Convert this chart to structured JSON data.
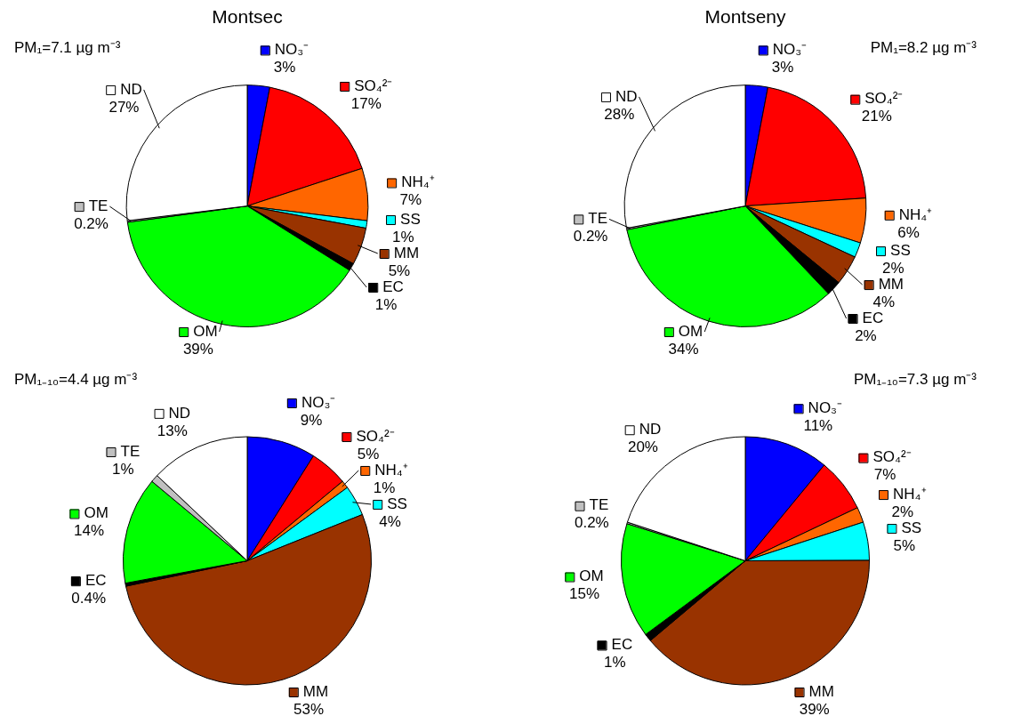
{
  "chart_data": [
    {
      "type": "pie",
      "legend": "right",
      "title": "Montsec",
      "annotations": [
        "PM₁=7.1 µg m⁻³"
      ],
      "categories": [
        "NO₃⁻",
        "SO₄²⁻",
        "NH₄⁺",
        "SS",
        "MM",
        "EC",
        "OM",
        "TE",
        "ND"
      ],
      "values": [
        3,
        17,
        7,
        1,
        5,
        1,
        39,
        0.2,
        27
      ],
      "value_labels": [
        "3%",
        "17%",
        "7%",
        "1%",
        "5%",
        "1%",
        "39%",
        "0.2%",
        "27%"
      ],
      "colors": [
        "#0000ff",
        "#ff0000",
        "#ff6600",
        "#00ffff",
        "#993300",
        "#000000",
        "#00ff00",
        "#c0c0c0",
        "#ffffff"
      ]
    },
    {
      "type": "pie",
      "legend": "right",
      "title": "Montseny",
      "annotations": [
        "PM₁=8.2 µg m⁻³"
      ],
      "categories": [
        "NO₃⁻",
        "SO₄²⁻",
        "NH₄⁺",
        "SS",
        "MM",
        "EC",
        "OM",
        "TE",
        "ND"
      ],
      "values": [
        3,
        21,
        6,
        2,
        4,
        2,
        34,
        0.2,
        28
      ],
      "value_labels": [
        "3%",
        "21%",
        "6%",
        "2%",
        "4%",
        "2%",
        "34%",
        "0.2%",
        "28%"
      ],
      "colors": [
        "#0000ff",
        "#ff0000",
        "#ff6600",
        "#00ffff",
        "#993300",
        "#000000",
        "#00ff00",
        "#c0c0c0",
        "#ffffff"
      ]
    },
    {
      "type": "pie",
      "legend": "right",
      "annotations": [
        "PM₁₋₁₀=4.4 µg m⁻³"
      ],
      "categories": [
        "NO₃⁻",
        "SO₄²⁻",
        "NH₄⁺",
        "SS",
        "MM",
        "EC",
        "OM",
        "TE",
        "ND"
      ],
      "values": [
        9,
        5,
        1,
        4,
        53,
        0.4,
        14,
        1,
        13
      ],
      "value_labels": [
        "9%",
        "5%",
        "1%",
        "4%",
        "53%",
        "0.4%",
        "14%",
        "1%",
        "13%"
      ],
      "colors": [
        "#0000ff",
        "#ff0000",
        "#ff6600",
        "#00ffff",
        "#993300",
        "#000000",
        "#00ff00",
        "#c0c0c0",
        "#ffffff"
      ]
    },
    {
      "type": "pie",
      "legend": "right",
      "annotations": [
        "PM₁₋₁₀=7.3 µg m⁻³"
      ],
      "categories": [
        "NO₃⁻",
        "SO₄²⁻",
        "NH₄⁺",
        "SS",
        "MM",
        "EC",
        "OM",
        "TE",
        "ND"
      ],
      "values": [
        11,
        7,
        2,
        5,
        39,
        1,
        15,
        0.2,
        20
      ],
      "value_labels": [
        "11%",
        "7%",
        "2%",
        "5%",
        "39%",
        "1%",
        "15%",
        "0.2%",
        "20%"
      ],
      "colors": [
        "#0000ff",
        "#ff0000",
        "#ff6600",
        "#00ffff",
        "#993300",
        "#000000",
        "#00ff00",
        "#c0c0c0",
        "#ffffff"
      ]
    }
  ]
}
